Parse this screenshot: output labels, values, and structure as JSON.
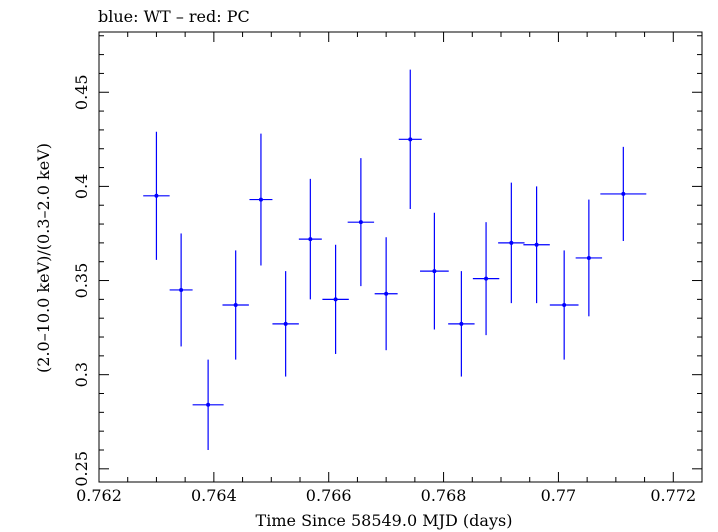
{
  "chart_data": {
    "type": "scatter",
    "title": "blue: WT – red: PC",
    "xlabel": "Time Since 58549.0 MJD (days)",
    "ylabel": "(2.0–10.0 keV)/(0.3–2.0 keV)",
    "xlim": [
      0.762,
      0.7725
    ],
    "ylim": [
      0.243,
      0.482
    ],
    "xticks": [
      0.762,
      0.764,
      0.766,
      0.768,
      0.77,
      0.772
    ],
    "xtick_labels": [
      "0.762",
      "0.764",
      "0.766",
      "0.768",
      "0.77",
      "0.772"
    ],
    "yticks": [
      0.25,
      0.3,
      0.35,
      0.4,
      0.45
    ],
    "ytick_labels": [
      "0.25",
      "0.3",
      "0.35",
      "0.4",
      "0.45"
    ],
    "grid": false,
    "series": [
      {
        "name": "WT",
        "color": "#0000ff",
        "points": [
          {
            "x": 0.763,
            "xerr": 0.00023,
            "y": 0.395,
            "yerr": 0.034
          },
          {
            "x": 0.76343,
            "xerr": 0.0002,
            "y": 0.345,
            "yerr": 0.03
          },
          {
            "x": 0.7639,
            "xerr": 0.00027,
            "y": 0.284,
            "yerr": 0.024
          },
          {
            "x": 0.76438,
            "xerr": 0.00023,
            "y": 0.337,
            "yerr": 0.029
          },
          {
            "x": 0.76482,
            "xerr": 0.0002,
            "y": 0.393,
            "yerr": 0.035
          },
          {
            "x": 0.76525,
            "xerr": 0.00023,
            "y": 0.327,
            "yerr": 0.028
          },
          {
            "x": 0.76568,
            "xerr": 0.0002,
            "y": 0.372,
            "yerr": 0.032
          },
          {
            "x": 0.76612,
            "xerr": 0.00023,
            "y": 0.34,
            "yerr": 0.029
          },
          {
            "x": 0.76656,
            "xerr": 0.00023,
            "y": 0.381,
            "yerr": 0.034
          },
          {
            "x": 0.767,
            "xerr": 0.0002,
            "y": 0.343,
            "yerr": 0.03
          },
          {
            "x": 0.76742,
            "xerr": 0.0002,
            "y": 0.425,
            "yerr": 0.037
          },
          {
            "x": 0.76784,
            "xerr": 0.00025,
            "y": 0.355,
            "yerr": 0.031
          },
          {
            "x": 0.76831,
            "xerr": 0.00023,
            "y": 0.327,
            "yerr": 0.028
          },
          {
            "x": 0.76874,
            "xerr": 0.00023,
            "y": 0.351,
            "yerr": 0.03
          },
          {
            "x": 0.76918,
            "xerr": 0.00023,
            "y": 0.37,
            "yerr": 0.032
          },
          {
            "x": 0.76962,
            "xerr": 0.00023,
            "y": 0.369,
            "yerr": 0.031
          },
          {
            "x": 0.7701,
            "xerr": 0.00025,
            "y": 0.337,
            "yerr": 0.029
          },
          {
            "x": 0.77053,
            "xerr": 0.00023,
            "y": 0.362,
            "yerr": 0.031
          },
          {
            "x": 0.77113,
            "xerr": 0.0004,
            "y": 0.396,
            "yerr": 0.025
          }
        ]
      }
    ]
  }
}
